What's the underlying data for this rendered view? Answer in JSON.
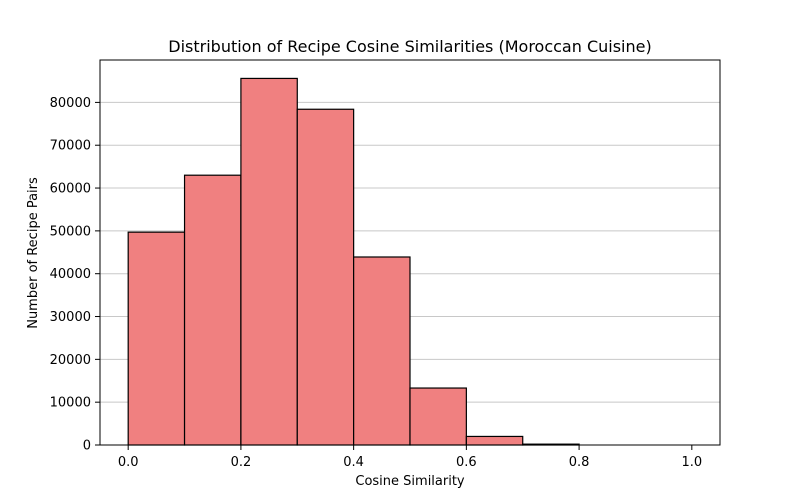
{
  "chart_data": {
    "type": "bar",
    "subtype": "histogram",
    "title": "Distribution of Recipe Cosine Similarities (Moroccan Cuisine)",
    "xlabel": "Cosine Similarity",
    "ylabel": "Number of Recipe Pairs",
    "bins": [
      {
        "start": 0.0,
        "end": 0.1,
        "value": 49700
      },
      {
        "start": 0.1,
        "end": 0.2,
        "value": 63000
      },
      {
        "start": 0.2,
        "end": 0.3,
        "value": 85600
      },
      {
        "start": 0.3,
        "end": 0.4,
        "value": 78400
      },
      {
        "start": 0.4,
        "end": 0.5,
        "value": 43900
      },
      {
        "start": 0.5,
        "end": 0.6,
        "value": 13300
      },
      {
        "start": 0.6,
        "end": 0.7,
        "value": 2000
      },
      {
        "start": 0.7,
        "end": 0.8,
        "value": 200
      },
      {
        "start": 0.8,
        "end": 0.9,
        "value": 0
      },
      {
        "start": 0.9,
        "end": 1.0,
        "value": 0
      }
    ],
    "xlim": [
      -0.05,
      1.05
    ],
    "ylim": [
      0,
      89900
    ],
    "x_ticks": [
      0.0,
      0.2,
      0.4,
      0.6,
      0.8,
      1.0
    ],
    "x_tick_labels": [
      "0.0",
      "0.2",
      "0.4",
      "0.6",
      "0.8",
      "1.0"
    ],
    "y_ticks": [
      0,
      10000,
      20000,
      30000,
      40000,
      50000,
      60000,
      70000,
      80000
    ],
    "y_tick_labels": [
      "0",
      "10000",
      "20000",
      "30000",
      "40000",
      "50000",
      "60000",
      "70000",
      "80000"
    ],
    "grid": "y",
    "bar_color": "#f08080",
    "edge_color": "#000000",
    "grid_color": "#c8c8c8"
  }
}
